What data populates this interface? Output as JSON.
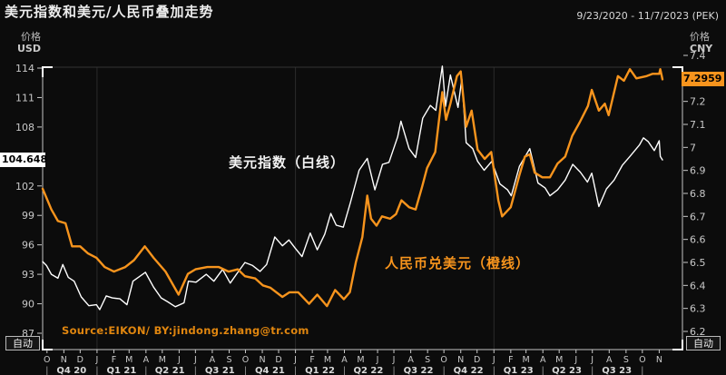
{
  "title": "美元指数和美元/人民币叠加走势",
  "date_range": "9/23/2020 - 11/7/2023 (PEK)",
  "left_axis": {
    "label_line1": "价格",
    "label_line2": "USD",
    "ticks": [
      114,
      111,
      108,
      105,
      102,
      99,
      96,
      93,
      90,
      87
    ],
    "current_value": "104.648",
    "range": [
      87,
      114
    ]
  },
  "right_axis": {
    "label_line1": "价格",
    "label_line2": "CNY",
    "ticks": [
      7.4,
      7.3,
      7.2,
      7.1,
      7,
      6.9,
      6.8,
      6.7,
      6.6,
      6.5,
      6.4,
      6.3,
      6.2
    ],
    "current_value": "7.2959",
    "range": [
      6.2,
      7.4
    ]
  },
  "annotations": {
    "white_series": "美元指数（白线）",
    "orange_series": "人民币兑美元（橙线）"
  },
  "source_text": "Source:EIKON/ BY:jindong.zhang@tr.com",
  "buttons": {
    "auto_left": "自动",
    "auto_right": "自动"
  },
  "colors": {
    "background": "#0c0c0c",
    "white_line": "#ffffff",
    "orange_line": "#f7941d",
    "grid": "#2b2b2b",
    "axis_line": "#c4c4c4",
    "top_frame": "#333333",
    "tick_text": "#c9c9c9",
    "quarter_text": "#d8d8d8",
    "left_badge_bg": "#ffffff",
    "right_badge_bg": "#f7941d",
    "source": "#e0860f"
  },
  "x_axis": {
    "month_letters": [
      "O",
      "N",
      "D",
      "J",
      "F",
      "M",
      "A",
      "M",
      "J",
      "J",
      "A",
      "S",
      "O",
      "N",
      "D",
      "J",
      "F",
      "M",
      "A",
      "M",
      "J",
      "J",
      "A",
      "S",
      "O",
      "N",
      "D",
      "J",
      "F",
      "M",
      "A",
      "M",
      "J",
      "J",
      "A",
      "S",
      "O",
      "N"
    ],
    "quarter_labels": [
      "Q4 20",
      "Q1 21",
      "Q2 21",
      "Q3 21",
      "Q4 21",
      "Q1 22",
      "Q2 22",
      "Q3 22",
      "Q4 22",
      "Q1 23",
      "Q2 23",
      "Q3 23"
    ],
    "gridline_years": [
      2021,
      2022,
      2023
    ]
  },
  "chart_data": {
    "type": "line",
    "title": "美元指数和美元/人民币叠加走势",
    "x_range": [
      "2020-09-23",
      "2023-11-07"
    ],
    "legend_position": "inline-annotations",
    "grid": "vertical-yearly",
    "series": [
      {
        "name": "美元指数（白线）",
        "axis": "left",
        "color": "#ffffff",
        "last_value": 104.648,
        "points": [
          [
            "2020-09-23",
            94.3
          ],
          [
            "2020-09-30",
            93.9
          ],
          [
            "2020-10-09",
            93.0
          ],
          [
            "2020-10-21",
            92.6
          ],
          [
            "2020-10-30",
            94.0
          ],
          [
            "2020-11-09",
            92.7
          ],
          [
            "2020-11-20",
            92.3
          ],
          [
            "2020-12-03",
            90.7
          ],
          [
            "2020-12-17",
            89.8
          ],
          [
            "2020-12-31",
            89.9
          ],
          [
            "2021-01-06",
            89.4
          ],
          [
            "2021-01-18",
            90.8
          ],
          [
            "2021-01-29",
            90.6
          ],
          [
            "2021-02-12",
            90.5
          ],
          [
            "2021-02-25",
            89.9
          ],
          [
            "2021-03-08",
            92.3
          ],
          [
            "2021-03-31",
            93.2
          ],
          [
            "2021-04-15",
            91.7
          ],
          [
            "2021-04-29",
            90.6
          ],
          [
            "2021-05-11",
            90.2
          ],
          [
            "2021-05-25",
            89.7
          ],
          [
            "2021-06-10",
            90.1
          ],
          [
            "2021-06-18",
            92.3
          ],
          [
            "2021-07-02",
            92.2
          ],
          [
            "2021-07-21",
            93.0
          ],
          [
            "2021-08-04",
            92.3
          ],
          [
            "2021-08-20",
            93.5
          ],
          [
            "2021-09-03",
            92.1
          ],
          [
            "2021-09-17",
            93.2
          ],
          [
            "2021-09-30",
            94.2
          ],
          [
            "2021-10-14",
            93.9
          ],
          [
            "2021-10-28",
            93.3
          ],
          [
            "2021-11-09",
            94.0
          ],
          [
            "2021-11-24",
            96.8
          ],
          [
            "2021-12-08",
            95.9
          ],
          [
            "2021-12-20",
            96.5
          ],
          [
            "2021-12-31",
            95.7
          ],
          [
            "2022-01-13",
            94.8
          ],
          [
            "2022-01-28",
            97.2
          ],
          [
            "2022-02-10",
            95.5
          ],
          [
            "2022-02-24",
            97.1
          ],
          [
            "2022-03-07",
            99.2
          ],
          [
            "2022-03-17",
            98.0
          ],
          [
            "2022-03-30",
            97.8
          ],
          [
            "2022-04-12",
            100.3
          ],
          [
            "2022-04-28",
            103.6
          ],
          [
            "2022-05-13",
            104.8
          ],
          [
            "2022-05-27",
            101.6
          ],
          [
            "2022-06-10",
            104.2
          ],
          [
            "2022-06-22",
            104.4
          ],
          [
            "2022-07-08",
            107.0
          ],
          [
            "2022-07-14",
            108.6
          ],
          [
            "2022-07-29",
            105.8
          ],
          [
            "2022-08-10",
            104.9
          ],
          [
            "2022-08-23",
            108.9
          ],
          [
            "2022-09-06",
            110.2
          ],
          [
            "2022-09-16",
            109.7
          ],
          [
            "2022-09-28",
            114.2
          ],
          [
            "2022-10-04",
            110.1
          ],
          [
            "2022-10-13",
            113.3
          ],
          [
            "2022-10-27",
            110.0
          ],
          [
            "2022-11-03",
            112.9
          ],
          [
            "2022-11-11",
            106.4
          ],
          [
            "2022-11-23",
            105.8
          ],
          [
            "2022-12-02",
            104.5
          ],
          [
            "2022-12-14",
            103.6
          ],
          [
            "2022-12-28",
            104.5
          ],
          [
            "2023-01-12",
            102.2
          ],
          [
            "2023-01-26",
            101.6
          ],
          [
            "2023-02-02",
            101.0
          ],
          [
            "2023-02-17",
            104.0
          ],
          [
            "2023-03-08",
            105.8
          ],
          [
            "2023-03-23",
            102.3
          ],
          [
            "2023-04-05",
            101.8
          ],
          [
            "2023-04-14",
            101.0
          ],
          [
            "2023-04-28",
            101.6
          ],
          [
            "2023-05-12",
            102.6
          ],
          [
            "2023-05-26",
            104.2
          ],
          [
            "2023-06-09",
            103.4
          ],
          [
            "2023-06-22",
            102.4
          ],
          [
            "2023-06-30",
            103.3
          ],
          [
            "2023-07-13",
            99.9
          ],
          [
            "2023-07-27",
            101.7
          ],
          [
            "2023-08-10",
            102.6
          ],
          [
            "2023-08-25",
            104.1
          ],
          [
            "2023-09-08",
            105.0
          ],
          [
            "2023-09-26",
            106.2
          ],
          [
            "2023-10-03",
            106.9
          ],
          [
            "2023-10-12",
            106.5
          ],
          [
            "2023-10-23",
            105.6
          ],
          [
            "2023-11-01",
            106.6
          ],
          [
            "2023-11-03",
            105.0
          ],
          [
            "2023-11-07",
            104.648
          ]
        ]
      },
      {
        "name": "人民币兑美元（橙线）",
        "axis": "right",
        "color": "#f7941d",
        "last_value": 7.2959,
        "points": [
          [
            "2020-09-23",
            6.82
          ],
          [
            "2020-10-09",
            6.73
          ],
          [
            "2020-10-21",
            6.68
          ],
          [
            "2020-11-04",
            6.67
          ],
          [
            "2020-11-16",
            6.57
          ],
          [
            "2020-12-01",
            6.57
          ],
          [
            "2020-12-15",
            6.54
          ],
          [
            "2020-12-31",
            6.52
          ],
          [
            "2021-01-15",
            6.48
          ],
          [
            "2021-02-01",
            6.46
          ],
          [
            "2021-02-22",
            6.48
          ],
          [
            "2021-03-10",
            6.51
          ],
          [
            "2021-03-30",
            6.57
          ],
          [
            "2021-04-15",
            6.52
          ],
          [
            "2021-05-07",
            6.46
          ],
          [
            "2021-05-31",
            6.36
          ],
          [
            "2021-06-17",
            6.45
          ],
          [
            "2021-07-01",
            6.47
          ],
          [
            "2021-07-23",
            6.48
          ],
          [
            "2021-08-13",
            6.48
          ],
          [
            "2021-08-31",
            6.46
          ],
          [
            "2021-09-17",
            6.47
          ],
          [
            "2021-09-30",
            6.44
          ],
          [
            "2021-10-19",
            6.43
          ],
          [
            "2021-11-02",
            6.4
          ],
          [
            "2021-11-16",
            6.39
          ],
          [
            "2021-12-08",
            6.35
          ],
          [
            "2021-12-21",
            6.37
          ],
          [
            "2022-01-06",
            6.37
          ],
          [
            "2022-01-26",
            6.32
          ],
          [
            "2022-02-10",
            6.36
          ],
          [
            "2022-02-28",
            6.31
          ],
          [
            "2022-03-15",
            6.38
          ],
          [
            "2022-03-31",
            6.34
          ],
          [
            "2022-04-11",
            6.37
          ],
          [
            "2022-04-22",
            6.5
          ],
          [
            "2022-05-04",
            6.61
          ],
          [
            "2022-05-13",
            6.79
          ],
          [
            "2022-05-20",
            6.69
          ],
          [
            "2022-05-30",
            6.66
          ],
          [
            "2022-06-09",
            6.7
          ],
          [
            "2022-06-24",
            6.69
          ],
          [
            "2022-07-05",
            6.71
          ],
          [
            "2022-07-15",
            6.77
          ],
          [
            "2022-07-29",
            6.74
          ],
          [
            "2022-08-10",
            6.73
          ],
          [
            "2022-08-22",
            6.83
          ],
          [
            "2022-08-31",
            6.91
          ],
          [
            "2022-09-15",
            6.98
          ],
          [
            "2022-09-28",
            7.24
          ],
          [
            "2022-10-05",
            7.12
          ],
          [
            "2022-10-13",
            7.19
          ],
          [
            "2022-10-25",
            7.31
          ],
          [
            "2022-11-01",
            7.33
          ],
          [
            "2022-11-11",
            7.09
          ],
          [
            "2022-11-21",
            7.16
          ],
          [
            "2022-12-02",
            6.99
          ],
          [
            "2022-12-15",
            6.95
          ],
          [
            "2022-12-27",
            6.98
          ],
          [
            "2023-01-09",
            6.77
          ],
          [
            "2023-01-16",
            6.7
          ],
          [
            "2023-02-01",
            6.74
          ],
          [
            "2023-02-17",
            6.88
          ],
          [
            "2023-02-27",
            6.96
          ],
          [
            "2023-03-08",
            6.97
          ],
          [
            "2023-03-17",
            6.89
          ],
          [
            "2023-03-31",
            6.87
          ],
          [
            "2023-04-14",
            6.87
          ],
          [
            "2023-04-28",
            6.93
          ],
          [
            "2023-05-12",
            6.96
          ],
          [
            "2023-05-25",
            7.05
          ],
          [
            "2023-06-08",
            7.11
          ],
          [
            "2023-06-23",
            7.18
          ],
          [
            "2023-06-30",
            7.25
          ],
          [
            "2023-07-13",
            7.16
          ],
          [
            "2023-07-24",
            7.19
          ],
          [
            "2023-07-31",
            7.14
          ],
          [
            "2023-08-07",
            7.21
          ],
          [
            "2023-08-17",
            7.31
          ],
          [
            "2023-08-28",
            7.29
          ],
          [
            "2023-09-08",
            7.34
          ],
          [
            "2023-09-20",
            7.3
          ],
          [
            "2023-10-09",
            7.31
          ],
          [
            "2023-10-20",
            7.32
          ],
          [
            "2023-11-01",
            7.32
          ],
          [
            "2023-11-03",
            7.34
          ],
          [
            "2023-11-07",
            7.2959
          ]
        ]
      }
    ]
  }
}
